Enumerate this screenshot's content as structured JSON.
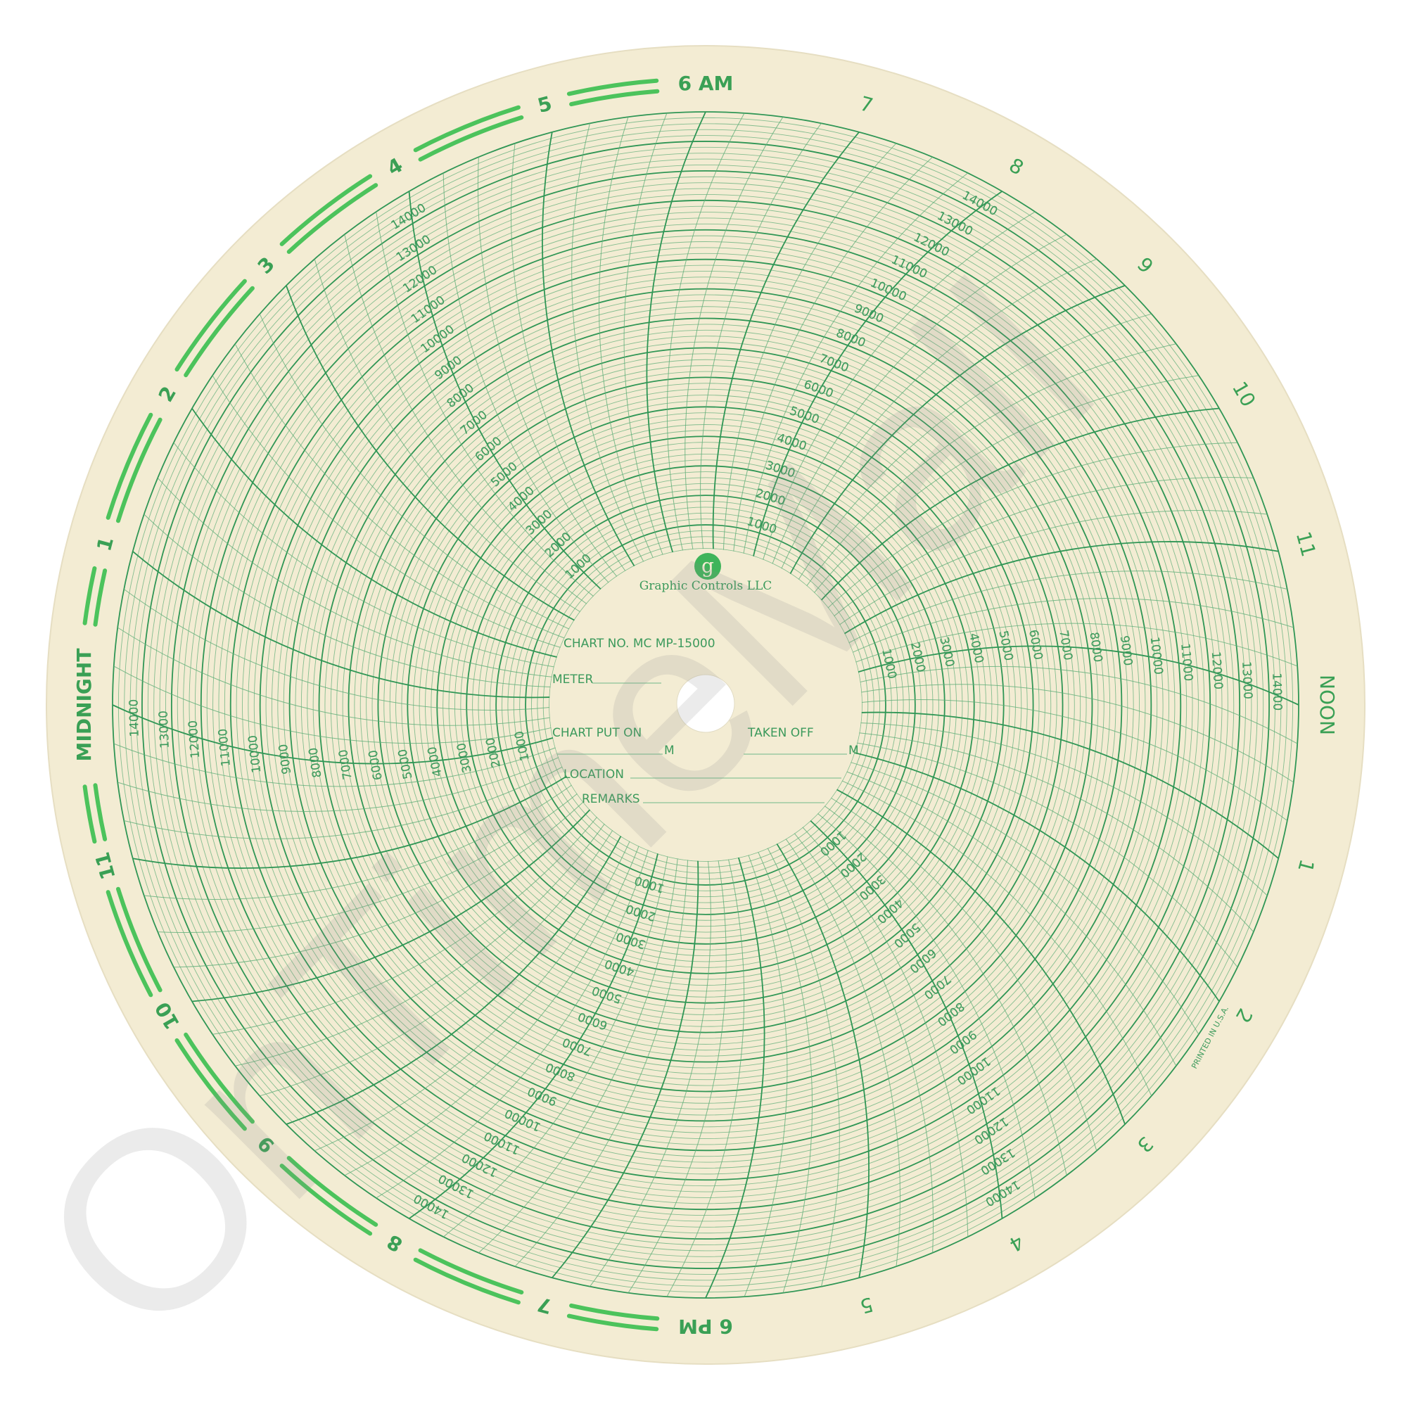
{
  "chart_paper": {
    "brand": "Graphic Controls LLC",
    "logo_letter": "g",
    "chart_no": "CHART NO.  MC  MP-15000",
    "fields": {
      "meter": "METER",
      "chart_put_on": "CHART PUT ON",
      "taken_off": "TAKEN OFF",
      "m_suffix": "M",
      "location": "LOCATION",
      "remarks": "REMARKS"
    },
    "printed_in": "PRINTED IN U.S.A.",
    "hour_labels": [
      "MIDNIGHT",
      "1",
      "2",
      "3",
      "4",
      "5",
      "6 AM",
      "7",
      "8",
      "9",
      "10",
      "11",
      "NOON",
      "1",
      "2",
      "3",
      "4",
      "5",
      "6 PM",
      "7",
      "8",
      "9",
      "10",
      "11"
    ],
    "scale_values": [
      1000,
      2000,
      3000,
      4000,
      5000,
      6000,
      7000,
      8000,
      9000,
      10000,
      11000,
      12000,
      13000,
      14000
    ],
    "scale_range": [
      0,
      15000
    ],
    "scale_hours": [
      0,
      4,
      8,
      12,
      16,
      20
    ],
    "night_band_hours": [
      18,
      30
    ],
    "colors": {
      "paper": "#f3ecd3",
      "grid": "#2f9655",
      "night_band": "#4cc35c",
      "text": "#3c9a5c"
    }
  },
  "watermark": "OnTimeMall"
}
